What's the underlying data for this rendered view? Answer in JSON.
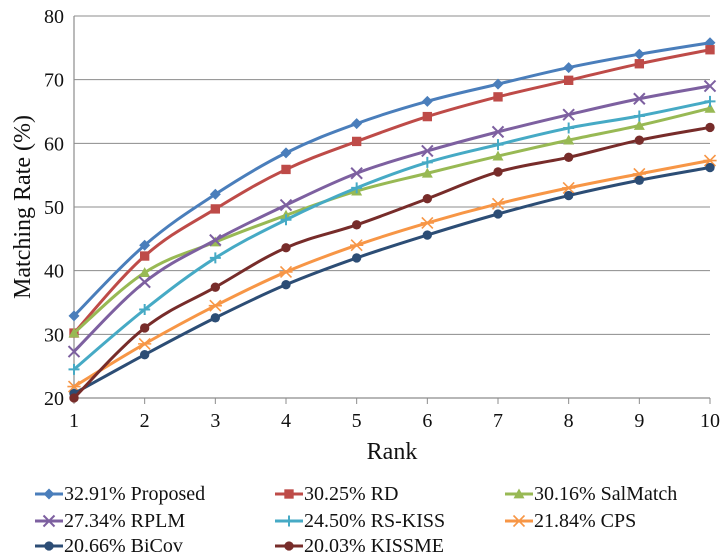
{
  "chart_data": {
    "type": "line",
    "title": "",
    "xlabel": "Rank",
    "ylabel": "Matching Rate (%)",
    "x": [
      1,
      2,
      3,
      4,
      5,
      6,
      7,
      8,
      9,
      10
    ],
    "xlim": [
      1,
      10
    ],
    "ylim": [
      20,
      80
    ],
    "yticks": [
      20,
      30,
      40,
      50,
      60,
      70,
      80
    ],
    "grid": "horizontal",
    "legend_position": "bottom",
    "series": [
      {
        "name": "32.91% Proposed",
        "color": "#4a7ebb",
        "marker": "diamond",
        "values": [
          32.9,
          44.0,
          52.0,
          58.5,
          63.1,
          66.6,
          69.3,
          71.9,
          74.0,
          75.8
        ]
      },
      {
        "name": "30.25% RD",
        "color": "#be4b48",
        "marker": "square",
        "values": [
          30.2,
          42.3,
          49.7,
          55.9,
          60.3,
          64.2,
          67.3,
          69.9,
          72.5,
          74.7
        ]
      },
      {
        "name": "30.16% SalMatch",
        "color": "#98b954",
        "marker": "triangle",
        "values": [
          30.2,
          39.7,
          44.5,
          48.7,
          52.5,
          55.3,
          58.0,
          60.5,
          62.8,
          65.5
        ]
      },
      {
        "name": "27.34% RPLM",
        "color": "#7d60a0",
        "marker": "x",
        "values": [
          27.3,
          38.2,
          44.8,
          50.3,
          55.3,
          58.8,
          61.8,
          64.5,
          67.0,
          69.0
        ]
      },
      {
        "name": "24.50% RS-KISS",
        "color": "#46aac5",
        "marker": "plus",
        "values": [
          24.5,
          33.9,
          42.0,
          48.0,
          53.0,
          57.0,
          59.8,
          62.4,
          64.3,
          66.6
        ]
      },
      {
        "name": "21.84% CPS",
        "color": "#f79646",
        "marker": "asterisk",
        "values": [
          21.8,
          28.5,
          34.5,
          39.8,
          44.0,
          47.5,
          50.5,
          53.0,
          55.2,
          57.3
        ]
      },
      {
        "name": "20.66% BiCov",
        "color": "#2c4d75",
        "marker": "circle",
        "values": [
          20.7,
          26.8,
          32.6,
          37.8,
          42.0,
          45.6,
          48.9,
          51.8,
          54.2,
          56.2
        ]
      },
      {
        "name": "20.03% KISSME",
        "color": "#772c2a",
        "marker": "circle",
        "values": [
          20.0,
          31.0,
          37.4,
          43.6,
          47.2,
          51.3,
          55.5,
          57.8,
          60.5,
          62.5
        ]
      }
    ]
  }
}
